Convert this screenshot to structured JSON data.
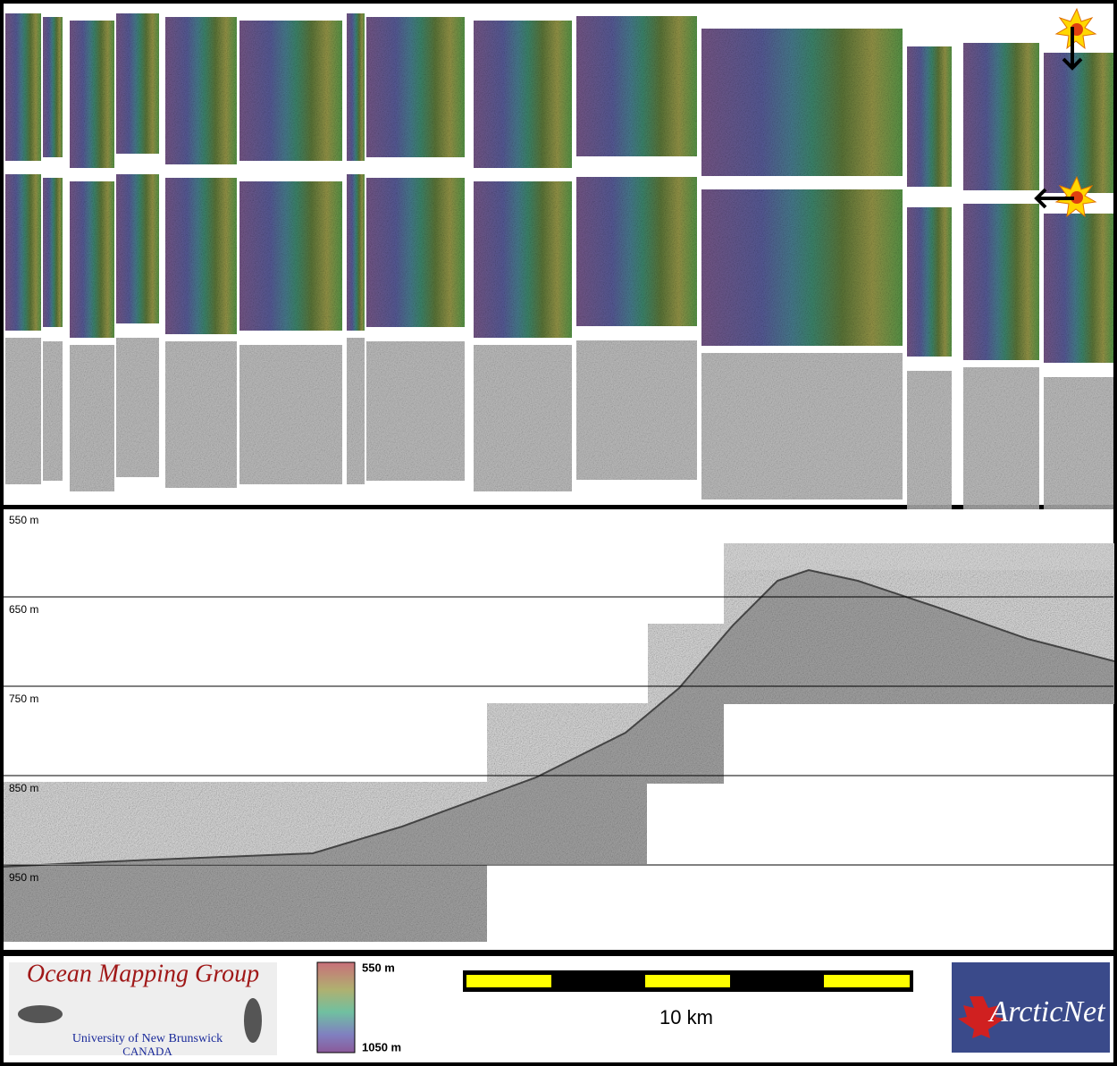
{
  "profile": {
    "depth_labels": [
      "550 m",
      "650 m",
      "750 m",
      "850 m",
      "950 m"
    ]
  },
  "footer": {
    "group_name": "Ocean Mapping Group",
    "university": "University of New Brunswick",
    "country": "CANADA",
    "colorbar_top": "550 m",
    "colorbar_bottom": "1050 m",
    "scale_label": "10 km",
    "partner": "ArcticNet"
  }
}
